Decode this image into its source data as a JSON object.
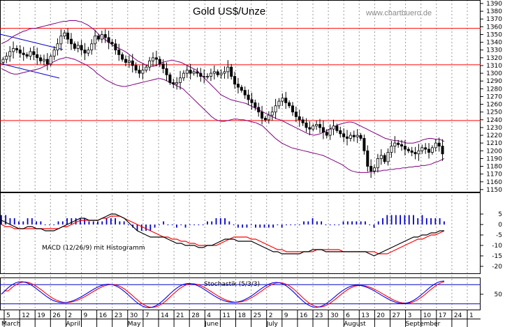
{
  "title": "Gold US$/Unze",
  "watermark": "www.chartbuero.de",
  "colors": {
    "candle": "#000000",
    "bollinger": "#800080",
    "resistance": "#ff0000",
    "trendline": "#0000cc",
    "macd_line": "#000000",
    "signal_line": "#ff0000",
    "histogram": "#0000cc",
    "stoch_k": "#0000ff",
    "stoch_d": "#ff0000",
    "stoch_bands": "#0000cc"
  },
  "chart_data": [
    {
      "type": "candlestick",
      "title": "Gold US$/Unze",
      "ylim": [
        1145,
        1390
      ],
      "y_ticks": [
        1150,
        1160,
        1170,
        1180,
        1190,
        1200,
        1210,
        1220,
        1230,
        1240,
        1250,
        1260,
        1270,
        1280,
        1290,
        1300,
        1310,
        1320,
        1330,
        1340,
        1350,
        1360,
        1370,
        1380,
        1390
      ],
      "horizontal_lines": [
        1358,
        1311,
        1239
      ],
      "closes": [
        1318,
        1322,
        1328,
        1332,
        1330,
        1326,
        1324,
        1322,
        1328,
        1324,
        1320,
        1316,
        1318,
        1312,
        1322,
        1330,
        1338,
        1348,
        1352,
        1344,
        1338,
        1332,
        1336,
        1330,
        1326,
        1330,
        1338,
        1348,
        1344,
        1350,
        1346,
        1340,
        1338,
        1330,
        1324,
        1318,
        1314,
        1316,
        1310,
        1304,
        1300,
        1304,
        1308,
        1316,
        1320,
        1318,
        1312,
        1306,
        1298,
        1288,
        1286,
        1288,
        1294,
        1300,
        1304,
        1300,
        1302,
        1300,
        1296,
        1296,
        1296,
        1300,
        1302,
        1298,
        1300,
        1302,
        1308,
        1296,
        1286,
        1282,
        1278,
        1272,
        1266,
        1262,
        1256,
        1250,
        1242,
        1240,
        1246,
        1250,
        1258,
        1264,
        1268,
        1262,
        1258,
        1250,
        1244,
        1240,
        1236,
        1230,
        1228,
        1232,
        1234,
        1230,
        1224,
        1220,
        1228,
        1232,
        1226,
        1222,
        1218,
        1216,
        1220,
        1218,
        1220,
        1216,
        1200,
        1180,
        1174,
        1178,
        1190,
        1194,
        1186,
        1198,
        1206,
        1210,
        1208,
        1206,
        1202,
        1200,
        1198,
        1196,
        1200,
        1204,
        1202,
        1198,
        1204,
        1210,
        1206,
        1196
      ],
      "bollinger_upper": [
        1338,
        1340,
        1342,
        1345,
        1348,
        1350,
        1352,
        1354,
        1355,
        1357,
        1358,
        1358,
        1359,
        1360,
        1361,
        1362,
        1363,
        1364,
        1365,
        1366,
        1367,
        1367,
        1368,
        1368,
        1368,
        1367,
        1366,
        1364,
        1362,
        1359,
        1356,
        1352,
        1348,
        1345,
        1342,
        1339,
        1336,
        1334,
        1332,
        1330,
        1328,
        1325,
        1322,
        1319,
        1316,
        1314,
        1312,
        1310,
        1309,
        1309,
        1310,
        1312,
        1314,
        1315,
        1316,
        1317,
        1316,
        1315,
        1314,
        1312,
        1310,
        1308,
        1306,
        1304,
        1300,
        1296,
        1292,
        1288,
        1284,
        1280,
        1276,
        1272,
        1270,
        1268,
        1266,
        1265,
        1264,
        1263,
        1262,
        1261,
        1259,
        1257,
        1255,
        1253,
        1251,
        1249,
        1247,
        1245,
        1243,
        1241,
        1240,
        1238,
        1236,
        1234,
        1232,
        1230,
        1228,
        1226,
        1224,
        1222,
        1221,
        1220,
        1221,
        1222,
        1224,
        1226,
        1228,
        1230,
        1232,
        1234,
        1235,
        1236,
        1237,
        1237,
        1236,
        1234,
        1232,
        1230,
        1228,
        1226,
        1224,
        1222,
        1220,
        1218,
        1216,
        1215,
        1214,
        1213,
        1213,
        1212,
        1211,
        1210,
        1210,
        1210,
        1211,
        1212,
        1214,
        1215,
        1216,
        1216,
        1215,
        1215,
        1214,
        1212
      ],
      "bollinger_lower": [
        1306,
        1304,
        1302,
        1300,
        1299,
        1299,
        1300,
        1301,
        1302,
        1303,
        1304,
        1305,
        1306,
        1308,
        1310,
        1312,
        1314,
        1316,
        1318,
        1319,
        1320,
        1320,
        1319,
        1318,
        1316,
        1314,
        1312,
        1310,
        1307,
        1304,
        1300,
        1297,
        1294,
        1291,
        1289,
        1287,
        1285,
        1284,
        1283,
        1283,
        1284,
        1285,
        1286,
        1287,
        1288,
        1289,
        1290,
        1291,
        1292,
        1293,
        1293,
        1292,
        1290,
        1288,
        1286,
        1284,
        1282,
        1280,
        1276,
        1272,
        1268,
        1264,
        1260,
        1256,
        1252,
        1248,
        1244,
        1241,
        1239,
        1238,
        1238,
        1239,
        1240,
        1241,
        1241,
        1240,
        1240,
        1239,
        1238,
        1237,
        1236,
        1234,
        1232,
        1228,
        1224,
        1220,
        1216,
        1213,
        1210,
        1208,
        1206,
        1204,
        1203,
        1202,
        1201,
        1200,
        1199,
        1198,
        1197,
        1196,
        1195,
        1194,
        1192,
        1190,
        1188,
        1186,
        1184,
        1182,
        1179,
        1176,
        1174,
        1173,
        1172,
        1172,
        1172,
        1172,
        1173,
        1173,
        1174,
        1174,
        1175,
        1175,
        1176,
        1176,
        1177,
        1177,
        1178,
        1178,
        1179,
        1179,
        1180,
        1180,
        1181,
        1181,
        1182,
        1183,
        1185,
        1186,
        1188,
        1190
      ]
    },
    {
      "type": "line",
      "title": "MACD (12/26/9) mit Histogramm",
      "ylim": [
        -21,
        12
      ],
      "y_ticks": [
        5,
        0,
        -5,
        -10,
        -15,
        -20
      ],
      "macd": [
        2,
        1,
        0,
        -1,
        -2,
        -2,
        -1,
        -1,
        -2,
        -2,
        -3,
        -3,
        -3,
        -2,
        -1,
        0,
        1,
        2,
        3,
        3,
        2,
        2,
        2,
        3,
        4,
        5,
        5,
        4,
        3,
        1,
        -1,
        -3,
        -4,
        -5,
        -6,
        -6,
        -6,
        -6,
        -7,
        -8,
        -9,
        -9,
        -10,
        -10,
        -10,
        -11,
        -11,
        -10,
        -10,
        -9,
        -8,
        -7,
        -7,
        -7,
        -8,
        -8,
        -8,
        -8,
        -9,
        -10,
        -11,
        -12,
        -13,
        -13,
        -14,
        -14,
        -14,
        -14,
        -14,
        -13,
        -13,
        -12,
        -12,
        -12,
        -13,
        -13,
        -13,
        -13,
        -13,
        -13,
        -13,
        -13,
        -13,
        -13,
        -14,
        -15,
        -14,
        -13,
        -12,
        -11,
        -10,
        -9,
        -8,
        -7,
        -6,
        -6,
        -5,
        -5,
        -4,
        -4,
        -3,
        -3
      ],
      "signal": [
        0,
        -1,
        -1,
        -2,
        -2,
        -2,
        -2,
        -2,
        -2,
        -2,
        -2,
        -2,
        -2,
        -2,
        -1,
        -1,
        0,
        1,
        2,
        2,
        2,
        2,
        2,
        3,
        3,
        4,
        4,
        4,
        3,
        2,
        1,
        0,
        -1,
        -2,
        -3,
        -4,
        -5,
        -6,
        -6,
        -7,
        -7,
        -8,
        -8,
        -9,
        -9,
        -10,
        -10,
        -10,
        -10,
        -10,
        -9,
        -8,
        -7,
        -6,
        -6,
        -6,
        -6,
        -7,
        -7,
        -8,
        -9,
        -10,
        -11,
        -12,
        -12,
        -13,
        -13,
        -13,
        -13,
        -13,
        -13,
        -13,
        -12,
        -12,
        -12,
        -12,
        -12,
        -12,
        -13,
        -13,
        -13,
        -13,
        -13,
        -13,
        -13,
        -13,
        -14,
        -14,
        -14,
        -13,
        -12,
        -11,
        -10,
        -9,
        -8,
        -7,
        -7,
        -6,
        -5,
        -5,
        -4,
        -3
      ]
    },
    {
      "type": "line",
      "title": "Stochastik (5/3/3)",
      "ylim": [
        0,
        100
      ],
      "y_ticks": [
        50
      ],
      "bands": [
        80,
        20
      ]
    }
  ],
  "x_axis": {
    "day_labels": [
      "5",
      "12",
      "19",
      "26",
      "2",
      "9",
      "16",
      "23",
      "30",
      "7",
      "14",
      "21",
      "28",
      "4",
      "11",
      "18",
      "25",
      "2",
      "9",
      "16",
      "23",
      "30",
      "6",
      "13",
      "20",
      "27",
      "3",
      "10",
      "17",
      "24",
      "1"
    ],
    "month_labels": [
      "March",
      "April",
      "May",
      "June",
      "July",
      "August",
      "September"
    ]
  }
}
